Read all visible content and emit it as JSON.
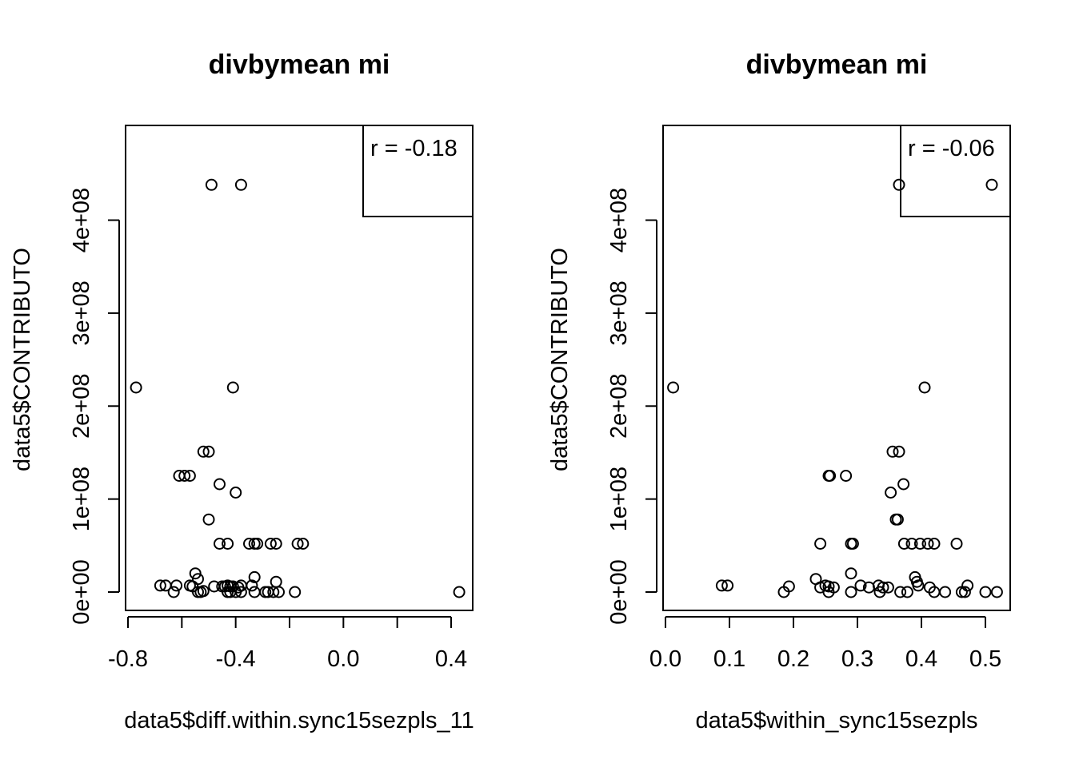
{
  "chart_data": [
    {
      "type": "scatter",
      "title": "divbymean mi",
      "xlabel": "data5$diff.within.sync15sezpls_11",
      "ylabel": "data5$CONTRIBUTO",
      "xlim": [
        -0.8,
        0.4
      ],
      "ylim": [
        0,
        440000000
      ],
      "xticks": [
        -0.8,
        -0.4,
        0.0,
        0.4
      ],
      "xtick_labels": [
        "-0.8",
        "-0.4",
        "0.0",
        "0.4"
      ],
      "xminor_ticks": [
        -0.8,
        -0.6,
        -0.4,
        -0.2,
        0.0,
        0.2,
        0.4
      ],
      "yticks": [
        0,
        100000000,
        200000000,
        300000000,
        400000000
      ],
      "ytick_labels": [
        "0e+00",
        "1e+08",
        "2e+08",
        "3e+08",
        "4e+08"
      ],
      "legend": {
        "text": "r = -0.18",
        "position": "top-right"
      },
      "grid": false,
      "points": [
        [
          -0.49,
          438000000
        ],
        [
          -0.38,
          438000000
        ],
        [
          -0.77,
          220000000
        ],
        [
          -0.41,
          220000000
        ],
        [
          -0.52,
          151000000
        ],
        [
          -0.5,
          151000000
        ],
        [
          -0.61,
          125000000
        ],
        [
          -0.59,
          125000000
        ],
        [
          -0.57,
          125000000
        ],
        [
          -0.46,
          116000000
        ],
        [
          -0.4,
          107000000
        ],
        [
          -0.5,
          78000000
        ],
        [
          -0.46,
          52000000
        ],
        [
          -0.43,
          52000000
        ],
        [
          -0.35,
          52000000
        ],
        [
          -0.33,
          52000000
        ],
        [
          -0.32,
          52000000
        ],
        [
          -0.27,
          52000000
        ],
        [
          -0.25,
          52000000
        ],
        [
          -0.17,
          52000000
        ],
        [
          -0.15,
          52000000
        ],
        [
          -0.55,
          20000000
        ],
        [
          -0.54,
          14000000
        ],
        [
          -0.33,
          16000000
        ],
        [
          -0.25,
          11000000
        ],
        [
          -0.68,
          7000000
        ],
        [
          -0.66,
          7000000
        ],
        [
          -0.62,
          7000000
        ],
        [
          -0.57,
          7000000
        ],
        [
          -0.56,
          6000000
        ],
        [
          -0.48,
          6000000
        ],
        [
          -0.45,
          6000000
        ],
        [
          -0.44,
          6000000
        ],
        [
          -0.43,
          7000000
        ],
        [
          -0.42,
          6000000
        ],
        [
          -0.41,
          6000000
        ],
        [
          -0.39,
          5000000
        ],
        [
          -0.38,
          7000000
        ],
        [
          -0.34,
          7000000
        ],
        [
          -0.63,
          0
        ],
        [
          -0.54,
          0
        ],
        [
          -0.53,
          0
        ],
        [
          -0.52,
          1000000
        ],
        [
          -0.43,
          0
        ],
        [
          -0.42,
          0
        ],
        [
          -0.4,
          0
        ],
        [
          -0.38,
          0
        ],
        [
          -0.33,
          0
        ],
        [
          -0.29,
          0
        ],
        [
          -0.28,
          0
        ],
        [
          -0.26,
          0
        ],
        [
          -0.24,
          0
        ],
        [
          -0.18,
          0
        ],
        [
          0.43,
          0
        ]
      ]
    },
    {
      "type": "scatter",
      "title": "divbymean mi",
      "xlabel": "data5$within_sync15sezpls",
      "ylabel": "data5$CONTRIBUTO",
      "xlim": [
        0.0,
        0.5
      ],
      "ylim": [
        0,
        440000000
      ],
      "xticks": [
        0.0,
        0.1,
        0.2,
        0.3,
        0.4,
        0.5
      ],
      "xtick_labels": [
        "0.0",
        "0.1",
        "0.2",
        "0.3",
        "0.4",
        "0.5"
      ],
      "xminor_ticks": [
        0.0,
        0.1,
        0.2,
        0.3,
        0.4,
        0.5
      ],
      "yticks": [
        0,
        100000000,
        200000000,
        300000000,
        400000000
      ],
      "ytick_labels": [
        "0e+00",
        "1e+08",
        "2e+08",
        "3e+08",
        "4e+08"
      ],
      "legend": {
        "text": "r = -0.06",
        "position": "top-right"
      },
      "grid": false,
      "points": [
        [
          0.365,
          438000000
        ],
        [
          0.51,
          438000000
        ],
        [
          0.012,
          220000000
        ],
        [
          0.405,
          220000000
        ],
        [
          0.355,
          151000000
        ],
        [
          0.365,
          151000000
        ],
        [
          0.255,
          125000000
        ],
        [
          0.257,
          125000000
        ],
        [
          0.282,
          125000000
        ],
        [
          0.372,
          116000000
        ],
        [
          0.352,
          107000000
        ],
        [
          0.36,
          78000000
        ],
        [
          0.363,
          78000000
        ],
        [
          0.242,
          52000000
        ],
        [
          0.29,
          52000000
        ],
        [
          0.293,
          52000000
        ],
        [
          0.373,
          52000000
        ],
        [
          0.385,
          52000000
        ],
        [
          0.398,
          52000000
        ],
        [
          0.41,
          52000000
        ],
        [
          0.42,
          52000000
        ],
        [
          0.455,
          52000000
        ],
        [
          0.29,
          20000000
        ],
        [
          0.39,
          16000000
        ],
        [
          0.393,
          11000000
        ],
        [
          0.235,
          14000000
        ],
        [
          0.088,
          7000000
        ],
        [
          0.097,
          7000000
        ],
        [
          0.193,
          6000000
        ],
        [
          0.242,
          5000000
        ],
        [
          0.25,
          7000000
        ],
        [
          0.255,
          6000000
        ],
        [
          0.263,
          5000000
        ],
        [
          0.305,
          7000000
        ],
        [
          0.318,
          5000000
        ],
        [
          0.333,
          7000000
        ],
        [
          0.34,
          5000000
        ],
        [
          0.348,
          5000000
        ],
        [
          0.395,
          7000000
        ],
        [
          0.413,
          5000000
        ],
        [
          0.472,
          7000000
        ],
        [
          0.185,
          0
        ],
        [
          0.255,
          0
        ],
        [
          0.29,
          0
        ],
        [
          0.335,
          0
        ],
        [
          0.367,
          0
        ],
        [
          0.378,
          0
        ],
        [
          0.42,
          0
        ],
        [
          0.437,
          0
        ],
        [
          0.463,
          0
        ],
        [
          0.468,
          0
        ],
        [
          0.5,
          0
        ],
        [
          0.518,
          0
        ]
      ]
    }
  ]
}
